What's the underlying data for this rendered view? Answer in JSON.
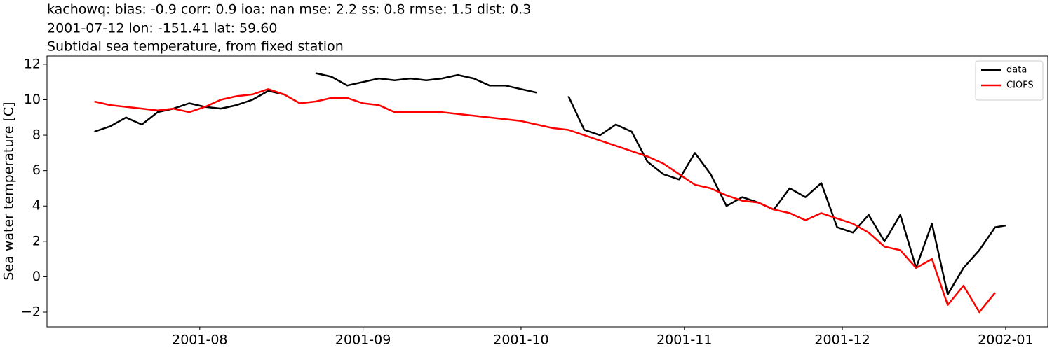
{
  "chart_data": {
    "type": "line",
    "title_lines": [
      "kachowq: bias: -0.9  corr: 0.9  ioa: nan  mse: 2.2  ss: 0.8  rmse: 1.5  dist: 0.3",
      "2001-07-12 lon: -151.41 lat: 59.60",
      "Subtidal sea temperature, from fixed station"
    ],
    "ylabel": "Sea water temperature [C]",
    "x": [
      "2001-07-12",
      "2001-07-15",
      "2001-07-18",
      "2001-07-21",
      "2001-07-24",
      "2001-07-27",
      "2001-07-30",
      "2001-08-02",
      "2001-08-05",
      "2001-08-08",
      "2001-08-11",
      "2001-08-14",
      "2001-08-17",
      "2001-08-20",
      "2001-08-23",
      "2001-08-26",
      "2001-08-29",
      "2001-09-01",
      "2001-09-04",
      "2001-09-07",
      "2001-09-10",
      "2001-09-13",
      "2001-09-16",
      "2001-09-19",
      "2001-09-22",
      "2001-09-25",
      "2001-09-28",
      "2001-10-01",
      "2001-10-04",
      "2001-10-07",
      "2001-10-10",
      "2001-10-13",
      "2001-10-16",
      "2001-10-19",
      "2001-10-22",
      "2001-10-25",
      "2001-10-28",
      "2001-10-31",
      "2001-11-03",
      "2001-11-06",
      "2001-11-09",
      "2001-11-12",
      "2001-11-15",
      "2001-11-18",
      "2001-11-21",
      "2001-11-24",
      "2001-11-27",
      "2001-11-30",
      "2001-12-03",
      "2001-12-06",
      "2001-12-09",
      "2001-12-12",
      "2001-12-15",
      "2001-12-18",
      "2001-12-21",
      "2001-12-24",
      "2001-12-27",
      "2001-12-30",
      "2002-01-01"
    ],
    "series": [
      {
        "name": "data",
        "color": "#000000",
        "values": [
          8.2,
          8.5,
          9.0,
          8.6,
          9.3,
          9.5,
          9.8,
          9.6,
          9.5,
          9.7,
          10.0,
          10.5,
          10.3,
          null,
          11.5,
          11.3,
          10.8,
          11.0,
          11.2,
          11.1,
          11.2,
          11.1,
          11.2,
          11.4,
          11.2,
          10.8,
          10.8,
          10.6,
          10.4,
          null,
          10.2,
          8.3,
          8.0,
          8.6,
          8.2,
          6.5,
          5.8,
          5.5,
          7.0,
          5.8,
          4.0,
          4.5,
          4.2,
          3.8,
          5.0,
          4.5,
          5.3,
          2.8,
          2.5,
          3.5,
          2.0,
          3.5,
          0.5,
          3.0,
          -1.0,
          0.5,
          1.5,
          2.8,
          2.9
        ]
      },
      {
        "name": "CIOFS",
        "color": "#ff0000",
        "values": [
          9.9,
          9.7,
          9.6,
          9.5,
          9.4,
          9.5,
          9.3,
          9.6,
          10.0,
          10.2,
          10.3,
          10.6,
          10.3,
          9.8,
          9.9,
          10.1,
          10.1,
          9.8,
          9.7,
          9.3,
          9.3,
          9.3,
          9.3,
          9.2,
          9.1,
          9.0,
          8.9,
          8.8,
          8.6,
          8.4,
          8.3,
          8.0,
          7.7,
          7.4,
          7.1,
          6.8,
          6.4,
          5.8,
          5.2,
          5.0,
          4.6,
          4.3,
          4.2,
          3.8,
          3.6,
          3.2,
          3.6,
          3.3,
          3.0,
          2.5,
          1.7,
          1.5,
          0.5,
          1.0,
          -1.6,
          -0.5,
          -2.0,
          -0.9,
          null
        ]
      }
    ],
    "xlim": [
      "2001-07-03",
      "2002-01-09"
    ],
    "xticks": [
      {
        "value": "2001-08-01",
        "label": "2001-08"
      },
      {
        "value": "2001-09-01",
        "label": "2001-09"
      },
      {
        "value": "2001-10-01",
        "label": "2001-10"
      },
      {
        "value": "2001-11-01",
        "label": "2001-11"
      },
      {
        "value": "2001-12-01",
        "label": "2001-12"
      },
      {
        "value": "2002-01-01",
        "label": "2002-01"
      }
    ],
    "ylim": [
      -2.83,
      12.47
    ],
    "yticks": [
      {
        "value": -2,
        "label": "−2"
      },
      0,
      2,
      4,
      6,
      8,
      10,
      12
    ],
    "grid": false,
    "legend": "upper right"
  }
}
